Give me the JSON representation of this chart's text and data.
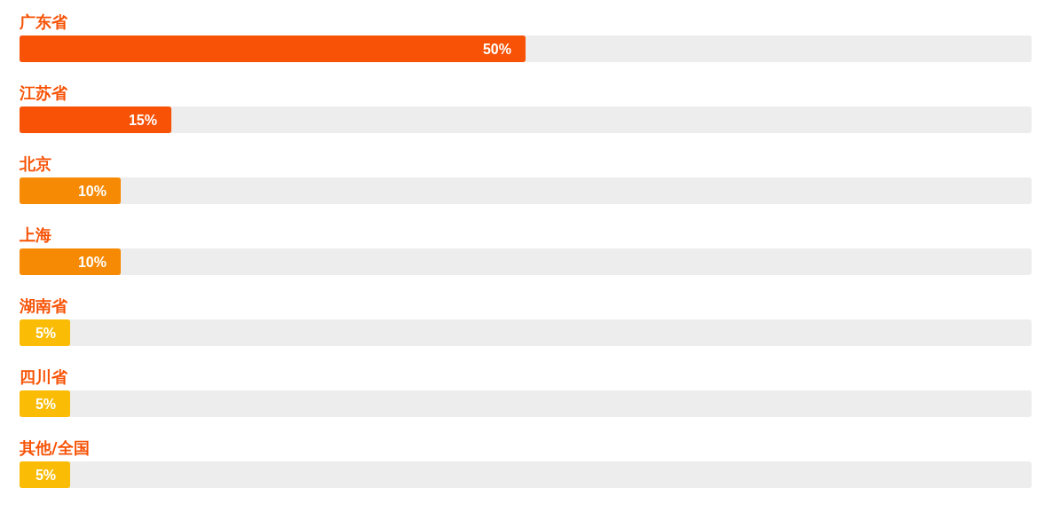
{
  "chart_data": {
    "type": "bar",
    "orientation": "horizontal",
    "categories": [
      "广东省",
      "江苏省",
      "北京",
      "上海",
      "湖南省",
      "四川省",
      "其他/全国"
    ],
    "values": [
      50,
      15,
      10,
      10,
      5,
      5,
      5
    ],
    "colors": [
      "#f75205",
      "#f75205",
      "#f78a05",
      "#f78a05",
      "#fbbc05",
      "#fbbc05",
      "#fbbc05"
    ],
    "value_labels": [
      "50%",
      "15%",
      "10%",
      "10%",
      "5%",
      "5%",
      "5%"
    ],
    "xlim": [
      0,
      100
    ],
    "tick_labels": false
  }
}
